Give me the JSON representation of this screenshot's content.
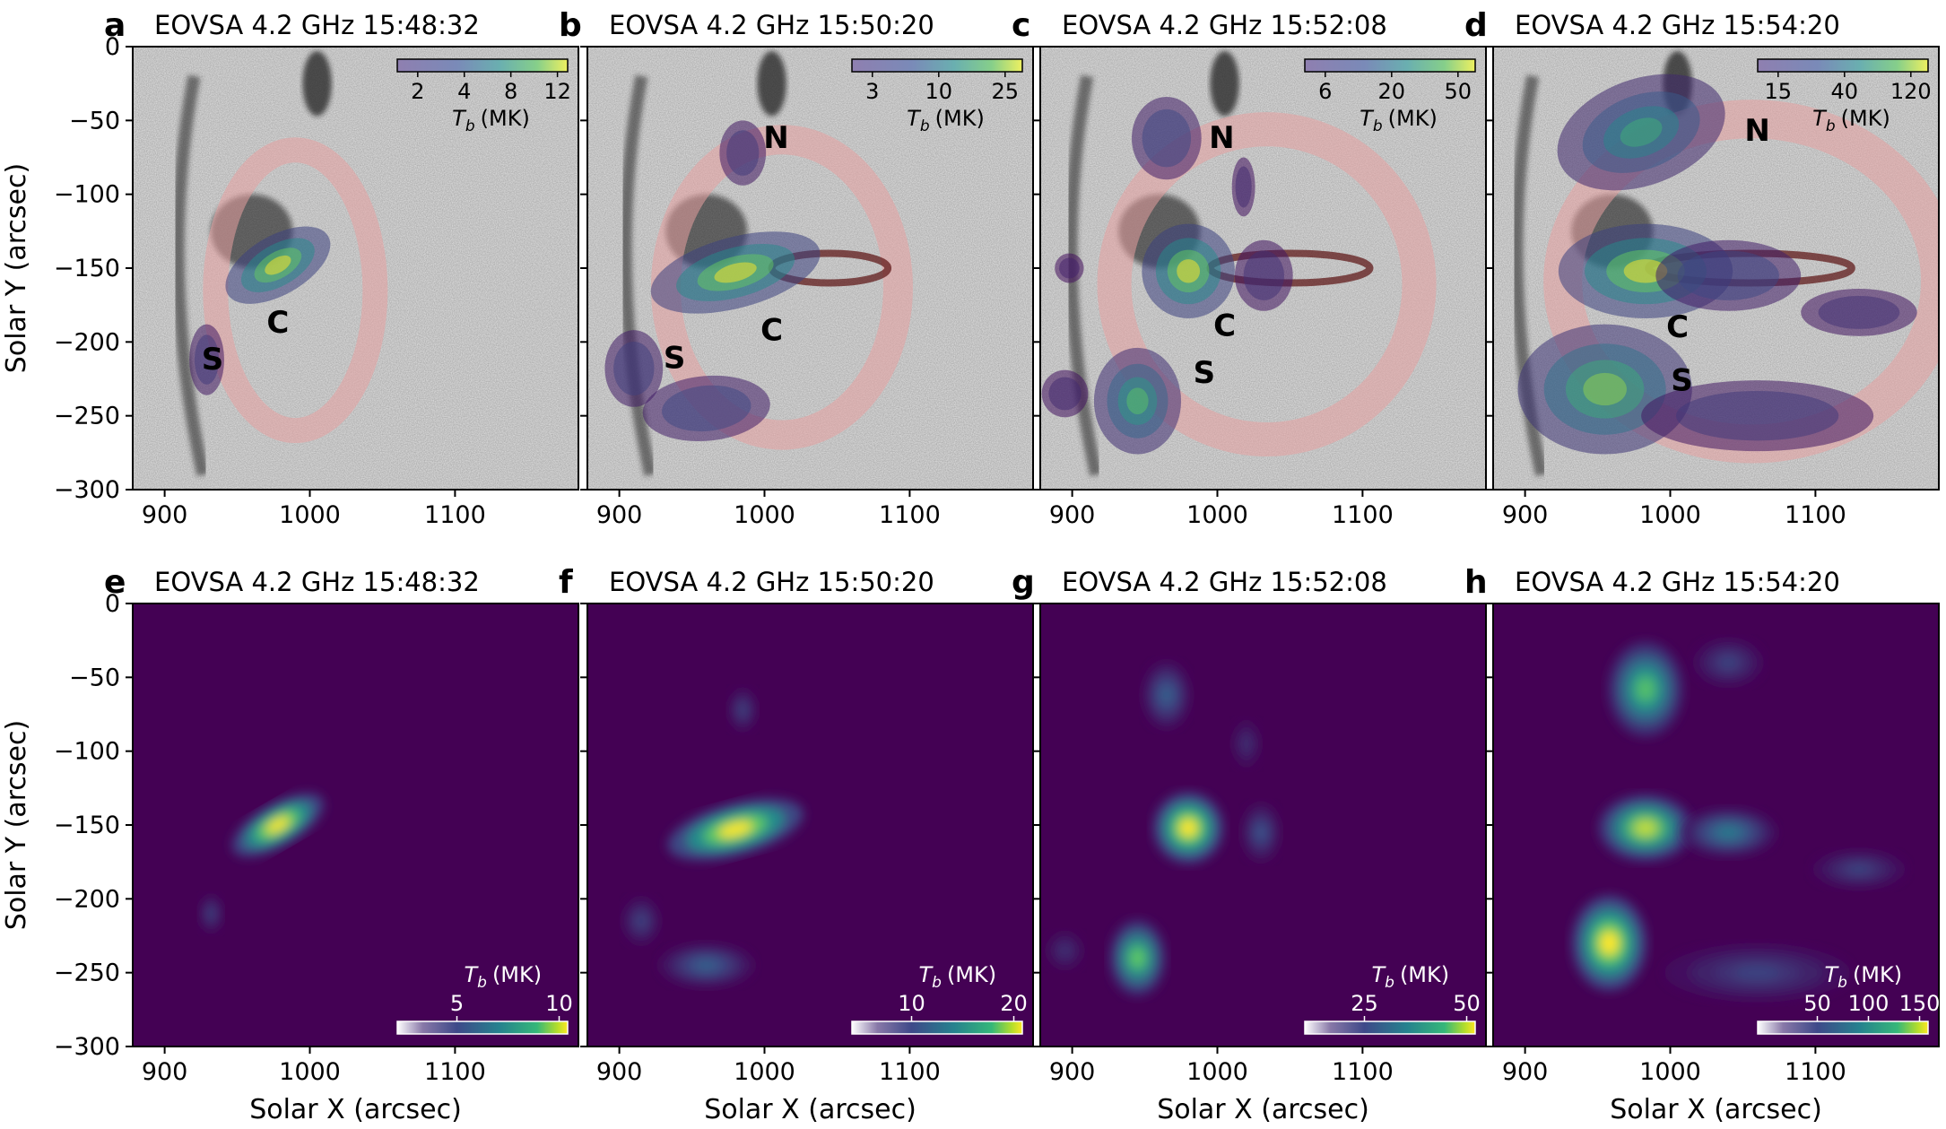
{
  "figure": {
    "xlabel": "Solar X (arcsec)",
    "ylabel": "Solar Y (arcsec)",
    "xticks": [
      900,
      1000,
      1100
    ],
    "yticks": [
      0,
      -50,
      -100,
      -150,
      -200,
      -250,
      -300
    ],
    "xlim": [
      878,
      1185
    ],
    "ylim": [
      -300,
      0
    ],
    "colorbar_label_prefix": "T",
    "colorbar_label_sub": "b",
    "colorbar_label_unit": "(MK)",
    "colors": {
      "viridis_dark": "#440154",
      "viridis_mid": "#21918c",
      "viridis_bright": "#fde725",
      "loop_overlay": "#e8a0a0",
      "contour_purple": "#5a3d8c"
    }
  },
  "chart_data": [
    {
      "type": "heatmap",
      "panel": "a",
      "row": "top",
      "title": "EOVSA 4.2 GHz 15:48:32",
      "colorbar": {
        "ticks": [
          "2",
          "4",
          "8",
          "12"
        ],
        "label": "Tb (MK)"
      },
      "source_labels": [
        {
          "text": "C",
          "x": 978,
          "y": -188
        },
        {
          "text": "S",
          "x": 933,
          "y": -213
        }
      ],
      "sources": [
        {
          "x": 978,
          "y": -148,
          "sx": 20,
          "sy": 10,
          "angle": -30,
          "intensity": 1.0
        },
        {
          "x": 929,
          "y": -212,
          "sx": 6,
          "sy": 12,
          "angle": 0,
          "intensity": 0.35
        }
      ]
    },
    {
      "type": "heatmap",
      "panel": "b",
      "row": "top",
      "title": "EOVSA 4.2 GHz 15:50:20",
      "colorbar": {
        "ticks": [
          "3",
          "10",
          "25"
        ],
        "label": "Tb (MK)"
      },
      "source_labels": [
        {
          "text": "N",
          "x": 1008,
          "y": -63
        },
        {
          "text": "C",
          "x": 1005,
          "y": -193
        },
        {
          "text": "S",
          "x": 938,
          "y": -212
        }
      ],
      "sources": [
        {
          "x": 980,
          "y": -153,
          "sx": 30,
          "sy": 12,
          "angle": -15,
          "intensity": 1.0
        },
        {
          "x": 985,
          "y": -72,
          "sx": 8,
          "sy": 11,
          "angle": 0,
          "intensity": 0.35
        },
        {
          "x": 910,
          "y": -218,
          "sx": 10,
          "sy": 13,
          "angle": 0,
          "intensity": 0.4
        },
        {
          "x": 960,
          "y": -245,
          "sx": 22,
          "sy": 11,
          "angle": -5,
          "intensity": 0.45
        }
      ]
    },
    {
      "type": "heatmap",
      "panel": "c",
      "row": "top",
      "title": "EOVSA 4.2 GHz 15:52:08",
      "colorbar": {
        "ticks": [
          "6",
          "20",
          "50"
        ],
        "label": "Tb (MK)"
      },
      "source_labels": [
        {
          "text": "N",
          "x": 1003,
          "y": -63
        },
        {
          "text": "C",
          "x": 1005,
          "y": -190
        },
        {
          "text": "S",
          "x": 991,
          "y": -222
        }
      ],
      "sources": [
        {
          "x": 980,
          "y": -152,
          "sx": 16,
          "sy": 16,
          "angle": 0,
          "intensity": 1.0
        },
        {
          "x": 965,
          "y": -62,
          "sx": 12,
          "sy": 14,
          "angle": 0,
          "intensity": 0.45
        },
        {
          "x": 945,
          "y": -240,
          "sx": 15,
          "sy": 18,
          "angle": 0,
          "intensity": 0.7
        },
        {
          "x": 1032,
          "y": -155,
          "sx": 10,
          "sy": 12,
          "angle": 0,
          "intensity": 0.3
        },
        {
          "x": 1018,
          "y": -95,
          "sx": 4,
          "sy": 10,
          "angle": 0,
          "intensity": 0.25
        },
        {
          "x": 895,
          "y": -235,
          "sx": 8,
          "sy": 8,
          "angle": 0,
          "intensity": 0.25
        },
        {
          "x": 898,
          "y": -150,
          "sx": 5,
          "sy": 5,
          "angle": 0,
          "intensity": 0.2
        }
      ]
    },
    {
      "type": "heatmap",
      "panel": "d",
      "row": "top",
      "title": "EOVSA 4.2 GHz 15:54:20",
      "colorbar": {
        "ticks": [
          "15",
          "40",
          "120"
        ],
        "label": "Tb (MK)"
      },
      "source_labels": [
        {
          "text": "N",
          "x": 1060,
          "y": -58
        },
        {
          "text": "C",
          "x": 1005,
          "y": -191
        },
        {
          "text": "S",
          "x": 1008,
          "y": -227
        }
      ],
      "sources": [
        {
          "x": 983,
          "y": -152,
          "sx": 30,
          "sy": 16,
          "angle": 0,
          "intensity": 1.0
        },
        {
          "x": 980,
          "y": -58,
          "sx": 30,
          "sy": 18,
          "angle": -20,
          "intensity": 0.6
        },
        {
          "x": 955,
          "y": -232,
          "sx": 30,
          "sy": 22,
          "angle": 0,
          "intensity": 0.8
        },
        {
          "x": 1040,
          "y": -155,
          "sx": 25,
          "sy": 12,
          "angle": 0,
          "intensity": 0.45
        },
        {
          "x": 1130,
          "y": -180,
          "sx": 20,
          "sy": 8,
          "angle": 0,
          "intensity": 0.3
        },
        {
          "x": 1060,
          "y": -250,
          "sx": 40,
          "sy": 12,
          "angle": 0,
          "intensity": 0.35
        }
      ]
    },
    {
      "type": "heatmap",
      "panel": "e",
      "row": "bottom",
      "title": "EOVSA 4.2 GHz 15:48:32",
      "colorbar": {
        "ticks": [
          "5",
          "10"
        ],
        "label": "Tb (MK)"
      },
      "sources": [
        {
          "x": 978,
          "y": -150,
          "sx": 22,
          "sy": 9,
          "angle": -30,
          "intensity": 1.0
        },
        {
          "x": 932,
          "y": -210,
          "sx": 5,
          "sy": 8,
          "angle": 0,
          "intensity": 0.2
        }
      ]
    },
    {
      "type": "heatmap",
      "panel": "f",
      "row": "bottom",
      "title": "EOVSA 4.2 GHz 15:50:20",
      "colorbar": {
        "ticks": [
          "10",
          "20"
        ],
        "label": "Tb (MK)"
      },
      "sources": [
        {
          "x": 980,
          "y": -153,
          "sx": 30,
          "sy": 11,
          "angle": -15,
          "intensity": 1.0
        },
        {
          "x": 985,
          "y": -72,
          "sx": 6,
          "sy": 9,
          "angle": 0,
          "intensity": 0.2
        },
        {
          "x": 915,
          "y": -215,
          "sx": 8,
          "sy": 10,
          "angle": 0,
          "intensity": 0.2
        },
        {
          "x": 960,
          "y": -245,
          "sx": 20,
          "sy": 9,
          "angle": 0,
          "intensity": 0.3
        }
      ]
    },
    {
      "type": "heatmap",
      "panel": "g",
      "row": "bottom",
      "title": "EOVSA 4.2 GHz 15:52:08",
      "colorbar": {
        "ticks": [
          "25",
          "50"
        ],
        "label": "Tb (MK)"
      },
      "sources": [
        {
          "x": 980,
          "y": -152,
          "sx": 15,
          "sy": 15,
          "angle": 0,
          "intensity": 1.0
        },
        {
          "x": 965,
          "y": -62,
          "sx": 10,
          "sy": 14,
          "angle": 0,
          "intensity": 0.3
        },
        {
          "x": 945,
          "y": -240,
          "sx": 12,
          "sy": 16,
          "angle": 0,
          "intensity": 0.75
        },
        {
          "x": 1030,
          "y": -155,
          "sx": 8,
          "sy": 12,
          "angle": 0,
          "intensity": 0.25
        },
        {
          "x": 1020,
          "y": -95,
          "sx": 6,
          "sy": 10,
          "angle": 0,
          "intensity": 0.15
        },
        {
          "x": 895,
          "y": -235,
          "sx": 8,
          "sy": 8,
          "angle": 0,
          "intensity": 0.15
        }
      ]
    },
    {
      "type": "heatmap",
      "panel": "h",
      "row": "bottom",
      "title": "EOVSA 4.2 GHz 15:54:20",
      "colorbar": {
        "ticks": [
          "50",
          "100",
          "150"
        ],
        "label": "Tb (MK)"
      },
      "sources": [
        {
          "x": 983,
          "y": -152,
          "sx": 20,
          "sy": 14,
          "angle": 0,
          "intensity": 0.9
        },
        {
          "x": 983,
          "y": -58,
          "sx": 16,
          "sy": 20,
          "angle": 0,
          "intensity": 0.7
        },
        {
          "x": 958,
          "y": -230,
          "sx": 16,
          "sy": 20,
          "angle": 0,
          "intensity": 1.0
        },
        {
          "x": 1040,
          "y": -155,
          "sx": 20,
          "sy": 10,
          "angle": 0,
          "intensity": 0.4
        },
        {
          "x": 1130,
          "y": -180,
          "sx": 20,
          "sy": 8,
          "angle": 0,
          "intensity": 0.2
        },
        {
          "x": 1060,
          "y": -250,
          "sx": 40,
          "sy": 12,
          "angle": 0,
          "intensity": 0.2
        },
        {
          "x": 1040,
          "y": -40,
          "sx": 15,
          "sy": 10,
          "angle": 0,
          "intensity": 0.2
        }
      ]
    }
  ]
}
